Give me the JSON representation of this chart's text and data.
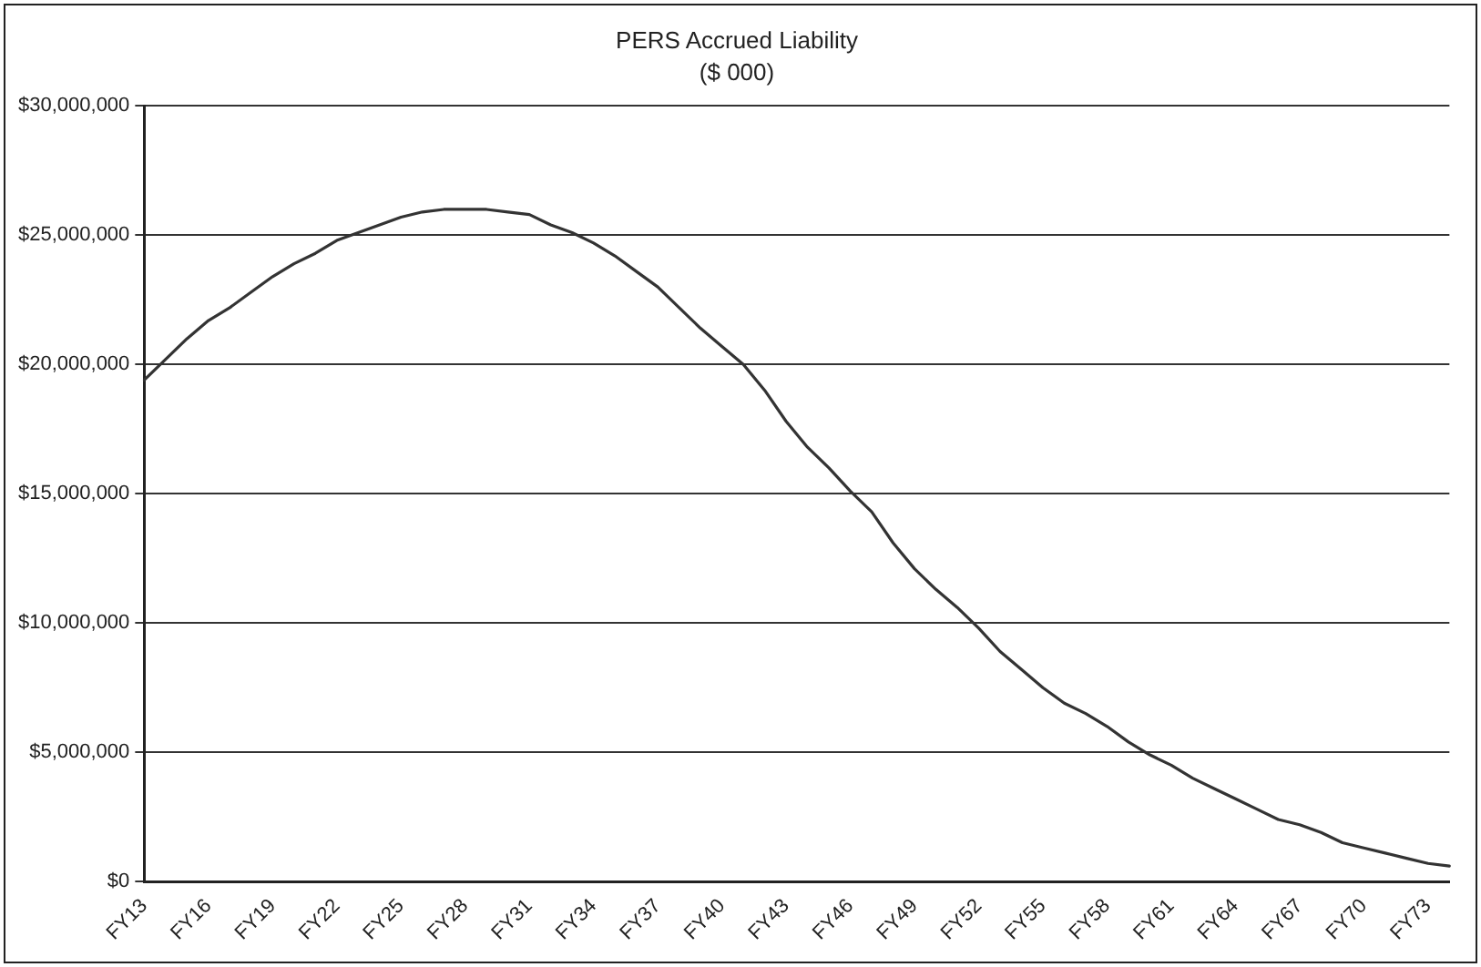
{
  "chart_data": {
    "type": "line",
    "title": "PERS Accrued Liability",
    "subtitle": "($ 000)",
    "categories": [
      "FY13",
      null,
      null,
      "FY16",
      null,
      null,
      "FY19",
      null,
      null,
      "FY22",
      null,
      null,
      "FY25",
      null,
      null,
      "FY28",
      null,
      null,
      "FY31",
      null,
      null,
      "FY34",
      null,
      null,
      "FY37",
      null,
      null,
      "FY40",
      null,
      null,
      "FY43",
      null,
      null,
      "FY46",
      null,
      null,
      "FY49",
      null,
      null,
      "FY52",
      null,
      null,
      "FY55",
      null,
      null,
      "FY58",
      null,
      null,
      "FY61",
      null,
      null,
      "FY64",
      null,
      null,
      "FY67",
      null,
      null,
      "FY70",
      null,
      null,
      "FY73",
      null
    ],
    "series": [
      {
        "color": "#333333",
        "values": [
          19400000,
          20200000,
          21000000,
          21700000,
          22200000,
          22800000,
          23400000,
          23900000,
          24300000,
          24800000,
          25100000,
          25400000,
          25700000,
          25900000,
          26000000,
          26000000,
          26000000,
          25900000,
          25800000,
          25400000,
          25100000,
          24700000,
          24200000,
          23600000,
          23000000,
          22200000,
          21400000,
          20700000,
          20000000,
          19000000,
          17800000,
          16800000,
          16000000,
          15100000,
          14300000,
          13100000,
          12100000,
          11300000,
          10600000,
          9800000,
          8900000,
          8200000,
          7500000,
          6900000,
          6500000,
          6000000,
          5400000,
          4900000,
          4500000,
          4000000,
          3600000,
          3200000,
          2800000,
          2400000,
          2200000,
          1900000,
          1500000,
          1300000,
          1100000,
          900000,
          700000,
          600000
        ]
      }
    ],
    "ylim": [
      0,
      30000000
    ],
    "yticks": [
      {
        "value": 0,
        "label": "$0"
      },
      {
        "value": 5000000,
        "label": "$5,000,000"
      },
      {
        "value": 10000000,
        "label": "$10,000,000"
      },
      {
        "value": 15000000,
        "label": "$15,000,000"
      },
      {
        "value": 20000000,
        "label": "$20,000,000"
      },
      {
        "value": 25000000,
        "label": "$25,000,000"
      },
      {
        "value": 30000000,
        "label": "$30,000,000"
      }
    ],
    "grid": "y",
    "legend": false,
    "marker": "none",
    "line_style": "solid"
  }
}
